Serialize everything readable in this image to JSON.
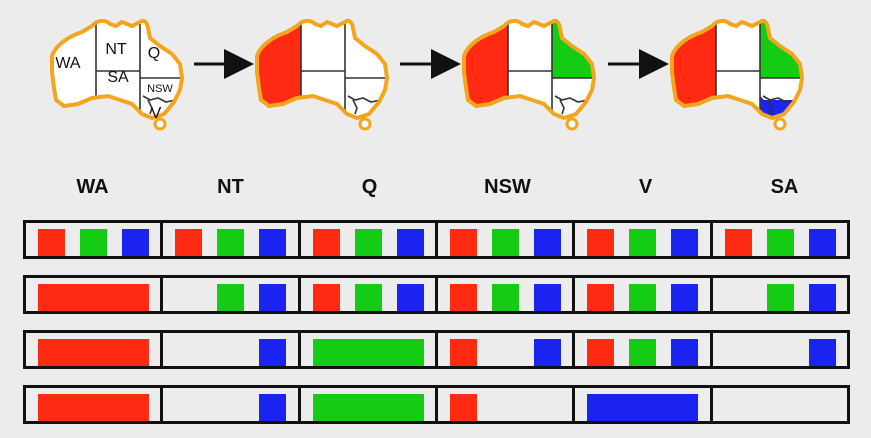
{
  "colors": {
    "red": "#ff2a12",
    "green": "#14cc14",
    "blue": "#1a23f0",
    "outline": "#f2a51d"
  },
  "map_labels": [
    "WA",
    "NT",
    "Q",
    "SA",
    "NSW",
    "V"
  ],
  "map_fills": [
    {
      "WA": "",
      "NT": "",
      "Q": "",
      "SA": "",
      "NSW": "",
      "V": ""
    },
    {
      "WA": "red"
    },
    {
      "WA": "red",
      "Q": "green"
    },
    {
      "WA": "red",
      "Q": "green",
      "V": "blue"
    }
  ],
  "table": {
    "headers": [
      "WA",
      "NT",
      "Q",
      "NSW",
      "V",
      "SA"
    ],
    "rows": [
      [
        [
          "red",
          "green",
          "blue"
        ],
        [
          "red",
          "green",
          "blue"
        ],
        [
          "red",
          "green",
          "blue"
        ],
        [
          "red",
          "green",
          "blue"
        ],
        [
          "red",
          "green",
          "blue"
        ],
        [
          "red",
          "green",
          "blue"
        ]
      ],
      [
        [
          "red*"
        ],
        [
          "green",
          "blue"
        ],
        [
          "red",
          "green",
          "blue"
        ],
        [
          "red",
          "green",
          "blue"
        ],
        [
          "red",
          "green",
          "blue"
        ],
        [
          "green",
          "blue"
        ]
      ],
      [
        [
          "red*"
        ],
        [
          "blue"
        ],
        [
          "green*"
        ],
        [
          "red",
          "blue"
        ],
        [
          "red",
          "green",
          "blue"
        ],
        [
          "blue"
        ]
      ],
      [
        [
          "red*"
        ],
        [
          "blue"
        ],
        [
          "green*"
        ],
        [
          "red"
        ],
        [
          "blue*"
        ],
        []
      ]
    ]
  }
}
